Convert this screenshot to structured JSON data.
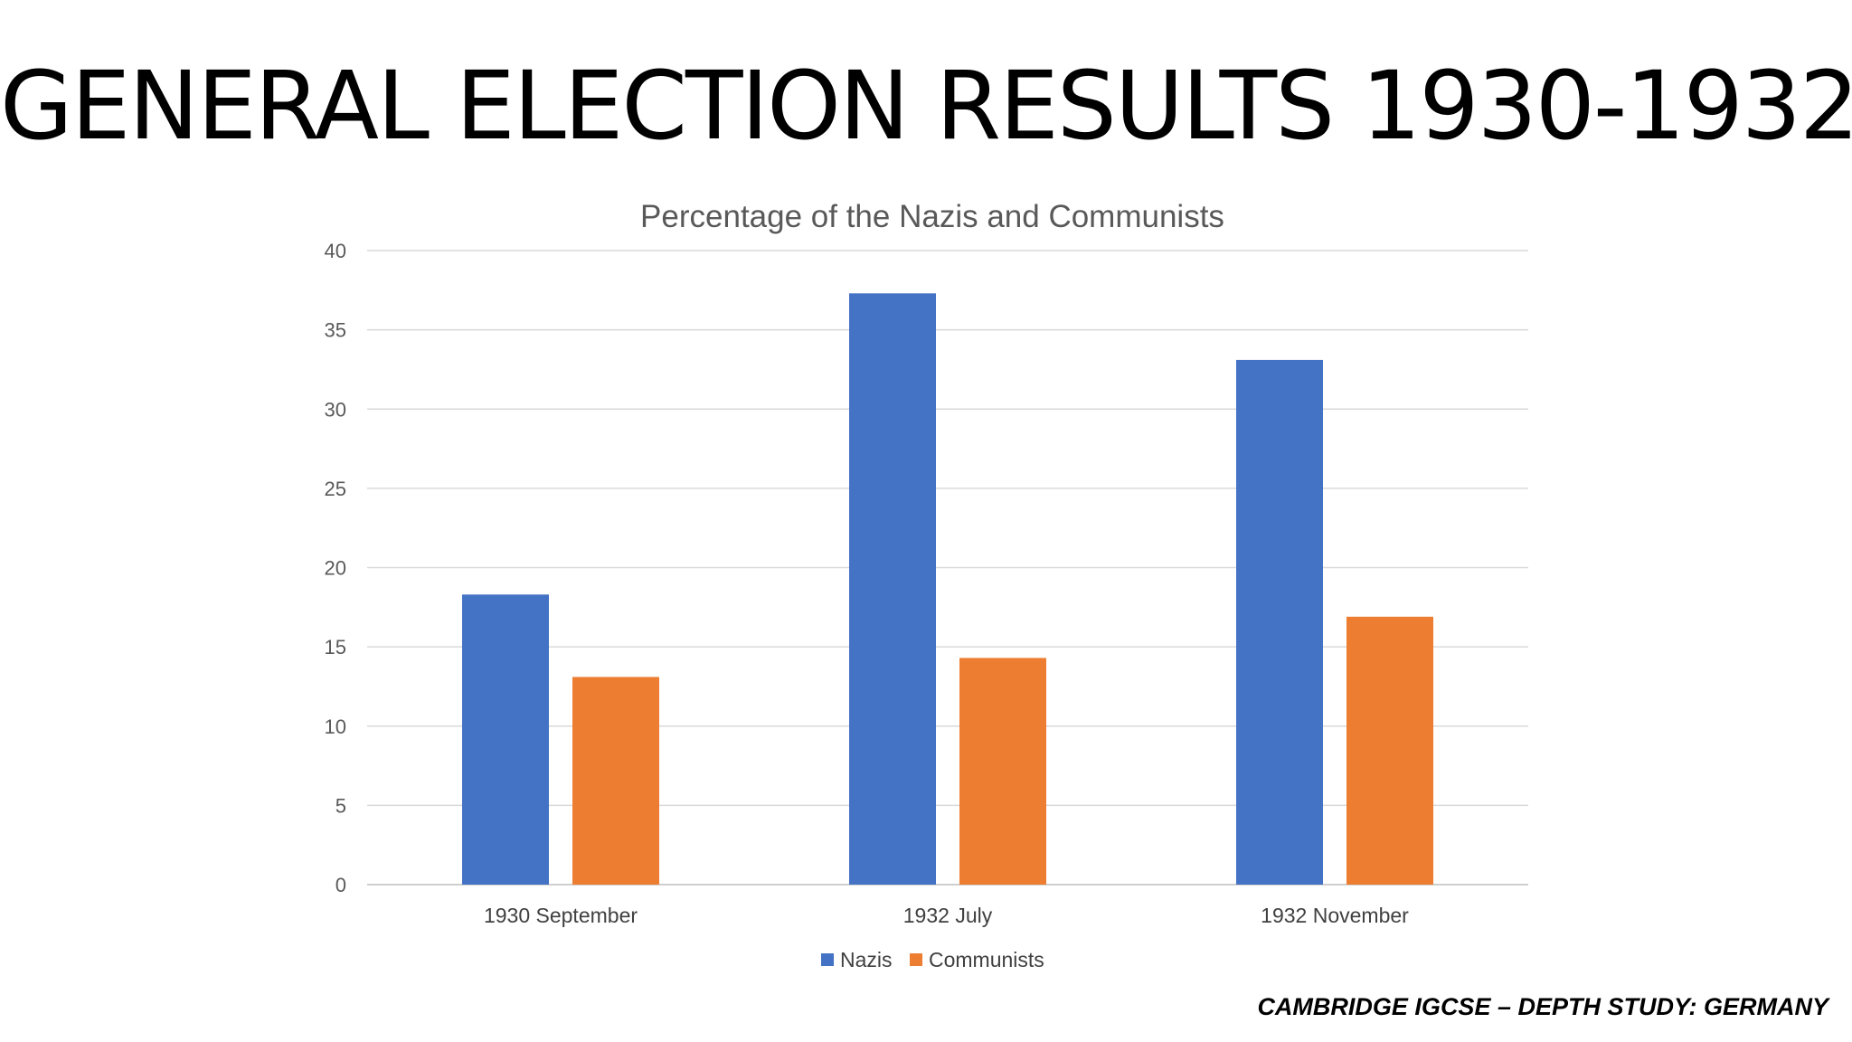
{
  "slide": {
    "title": "GENERAL ELECTION RESULTS 1930-1932",
    "footer": "CAMBRIDGE IGCSE – DEPTH STUDY: GERMANY"
  },
  "chart_data": {
    "type": "bar",
    "title": "Percentage of the Nazis and Communists",
    "categories": [
      "1930 September",
      "1932 July",
      "1932 November"
    ],
    "series": [
      {
        "name": "Nazis",
        "color": "#4472C4",
        "values": [
          18.3,
          37.3,
          33.1
        ]
      },
      {
        "name": "Communists",
        "color": "#ED7D31",
        "values": [
          13.1,
          14.3,
          16.9
        ]
      }
    ],
    "xlabel": "",
    "ylabel": "",
    "ylim": [
      0,
      40
    ],
    "yticks": [
      0,
      5,
      10,
      15,
      20,
      25,
      30,
      35,
      40
    ],
    "grid": true,
    "legend_position": "bottom"
  }
}
